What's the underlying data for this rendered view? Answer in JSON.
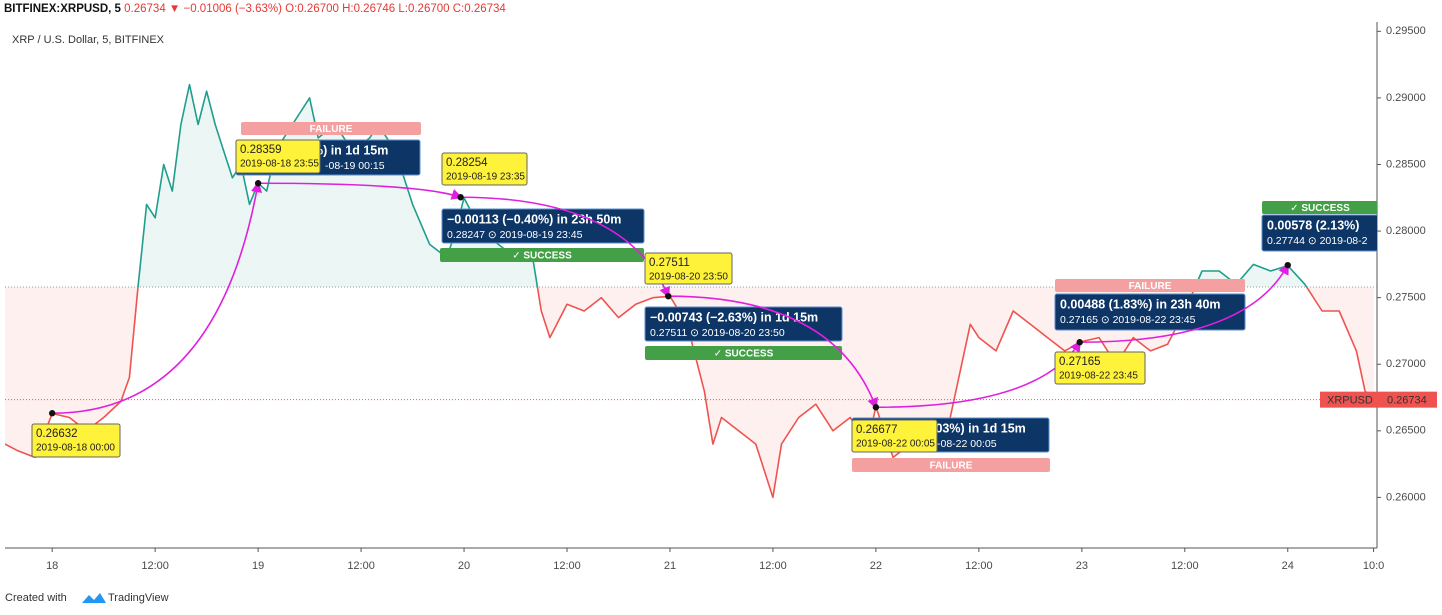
{
  "header": {
    "symbol": "BITFINEX:XRPUSD, 5",
    "last": "0.26734",
    "change": "▼ −0.01006 (−3.63%)",
    "ohlc": [
      "O:0.26700",
      "H:0.26746",
      "L:0.26700",
      "C:0.26734"
    ]
  },
  "chart_data": {
    "type": "line",
    "title": "XRP / U.S. Dollar, 5, BITFINEX",
    "x": [
      -5.5,
      -4,
      -2,
      0,
      2,
      4,
      6,
      8,
      9,
      10,
      11,
      12,
      13,
      14,
      15,
      16,
      17,
      18,
      19,
      20,
      21,
      22,
      23,
      24,
      25,
      26,
      28,
      30,
      31,
      33,
      35,
      37,
      38,
      40,
      42,
      44,
      46,
      47,
      48,
      50,
      52,
      54,
      56,
      57,
      58,
      60,
      62,
      64,
      66,
      68,
      70,
      72,
      74,
      76,
      77,
      78,
      80,
      82,
      84,
      85,
      87,
      89,
      91,
      93,
      95,
      96,
      98,
      100,
      102,
      104,
      106,
      107,
      108,
      110,
      112,
      114,
      116,
      118,
      120,
      122,
      124,
      126,
      128,
      130,
      132,
      134,
      136,
      138,
      140,
      142,
      144,
      146,
      148,
      150,
      152,
      153,
      154
    ],
    "series": [
      {
        "name": "XRPUSD",
        "color": "#1f9e8c",
        "color_below": "#ef5350",
        "values": [
          0.264,
          0.2635,
          0.263,
          0.2663,
          0.266,
          0.265,
          0.266,
          0.2672,
          0.269,
          0.2758,
          0.282,
          0.281,
          0.285,
          0.283,
          0.288,
          0.291,
          0.288,
          0.2905,
          0.288,
          0.286,
          0.284,
          0.285,
          0.282,
          0.2836,
          0.283,
          0.286,
          0.288,
          0.29,
          0.287,
          0.288,
          0.286,
          0.287,
          0.288,
          0.286,
          0.282,
          0.279,
          0.278,
          0.28,
          0.2825,
          0.28,
          0.279,
          0.278,
          0.278,
          0.274,
          0.272,
          0.2745,
          0.274,
          0.275,
          0.2735,
          0.2745,
          0.275,
          0.2751,
          0.273,
          0.268,
          0.264,
          0.266,
          0.265,
          0.264,
          0.26,
          0.264,
          0.266,
          0.267,
          0.265,
          0.266,
          0.264,
          0.2668,
          0.263,
          0.264,
          0.265,
          0.264,
          0.27,
          0.273,
          0.272,
          0.271,
          0.274,
          0.273,
          0.272,
          0.271,
          0.2717,
          0.272,
          0.27,
          0.272,
          0.271,
          0.2715,
          0.274,
          0.277,
          0.277,
          0.276,
          0.2775,
          0.277,
          0.2774,
          0.276,
          0.274,
          0.274,
          0.271,
          0.268,
          0.2673
        ]
      }
    ],
    "baseline": 0.2758,
    "last_value": 0.26734,
    "xlim": [
      -5.5,
      154.4
    ],
    "ylim": [
      0.2562,
      0.2957
    ],
    "xticks": [
      {
        "value": 0,
        "label": "18"
      },
      {
        "value": 12,
        "label": "12:00"
      },
      {
        "value": 24,
        "label": "19"
      },
      {
        "value": 36,
        "label": "12:00"
      },
      {
        "value": 48,
        "label": "20"
      },
      {
        "value": 60,
        "label": "12:00"
      },
      {
        "value": 72,
        "label": "21"
      },
      {
        "value": 84,
        "label": "12:00"
      },
      {
        "value": 96,
        "label": "22"
      },
      {
        "value": 108,
        "label": "12:00"
      },
      {
        "value": 120,
        "label": "23"
      },
      {
        "value": 132,
        "label": "12:00"
      },
      {
        "value": 144,
        "label": "24"
      },
      {
        "value": 154,
        "label": "10:0"
      }
    ],
    "yticks": [
      {
        "value": 0.26,
        "label": "0.26000"
      },
      {
        "value": 0.265,
        "label": "0.26500"
      },
      {
        "value": 0.27,
        "label": "0.27000"
      },
      {
        "value": 0.275,
        "label": "0.27500"
      },
      {
        "value": 0.28,
        "label": "0.28000"
      },
      {
        "value": 0.285,
        "label": "0.28500"
      },
      {
        "value": 0.29,
        "label": "0.29000"
      },
      {
        "value": 0.295,
        "label": "0.29500"
      }
    ],
    "points": [
      {
        "x": 0,
        "price": 0.26632,
        "date": "2019-08-18 00:00"
      },
      {
        "x": 24,
        "price": 0.28359,
        "date": "2019-08-18 23:55"
      },
      {
        "x": 47.6,
        "price": 0.28254,
        "date": "2019-08-19 23:35"
      },
      {
        "x": 71.8,
        "price": 0.27511,
        "date": "2019-08-20 23:50"
      },
      {
        "x": 96,
        "price": 0.26677,
        "date": "2019-08-22 00:05"
      },
      {
        "x": 119.75,
        "price": 0.27165,
        "date": "2019-08-22 23:45"
      },
      {
        "x": 144,
        "price": 0.27744
      }
    ],
    "predictions": [
      {
        "result": "FAILURE",
        "lines": [
          "3%) in 1d 15m",
          "-08-19  00:15"
        ]
      },
      {
        "result": "✓ SUCCESS",
        "lines": [
          "−0.00113 (−0.40%) in 23h 50m",
          "0.28247 ⊙ 2019-08-19  23:45"
        ]
      },
      {
        "result": "✓ SUCCESS",
        "lines": [
          "−0.00743 (−2.63%) in 1d 15m",
          "0.27511 ⊙ 2019-08-20  23:50"
        ]
      },
      {
        "result": "FAILURE",
        "lines": [
          ".03%) in 1d 15m",
          "-08-22  00:05"
        ]
      },
      {
        "result": "FAILURE",
        "lines": [
          "0.00488 (1.83%) in 23h 40m",
          "0.27165 ⊙ 2019-08-22  23:45"
        ]
      },
      {
        "result": "✓ SUCCESS",
        "lines": [
          "0.00578 (2.13%)",
          "0.27744 ⊙ 2019-08-2"
        ]
      }
    ]
  },
  "footer": {
    "created_with": "Created with",
    "brand": "TradingView"
  }
}
